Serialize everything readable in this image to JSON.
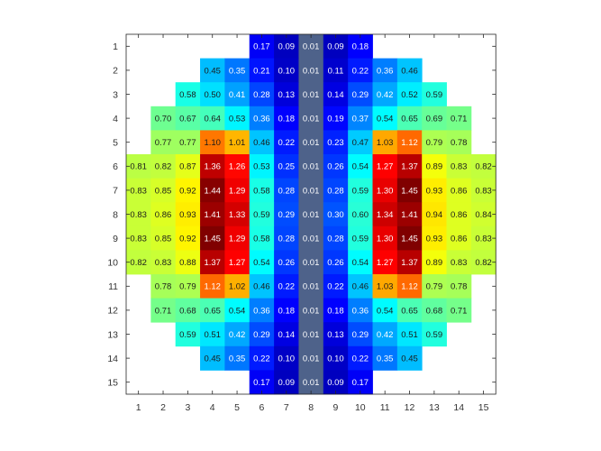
{
  "chart_data": {
    "type": "heatmap",
    "title": "",
    "xlabel": "",
    "ylabel": "",
    "x_ticks": [
      "1",
      "2",
      "3",
      "4",
      "5",
      "6",
      "7",
      "8",
      "9",
      "10",
      "11",
      "12",
      "13",
      "14",
      "15"
    ],
    "y_ticks": [
      "1",
      "2",
      "3",
      "4",
      "5",
      "6",
      "7",
      "8",
      "9",
      "10",
      "11",
      "12",
      "13",
      "14",
      "15"
    ],
    "colormap": "jet",
    "value_range": [
      0,
      1.45
    ],
    "rows": [
      [
        null,
        null,
        null,
        null,
        null,
        "0.17",
        "0.09",
        "0.01",
        "0.09",
        "0.18",
        null,
        null,
        null,
        null,
        null
      ],
      [
        null,
        null,
        null,
        "0.45",
        "0.35",
        "0.21",
        "0.10",
        "0.01",
        "0.11",
        "0.22",
        "0.36",
        "0.46",
        null,
        null,
        null
      ],
      [
        null,
        null,
        "0.58",
        "0.50",
        "0.41",
        "0.28",
        "0.13",
        "0.01",
        "0.14",
        "0.29",
        "0.42",
        "0.52",
        "0.59",
        null,
        null
      ],
      [
        null,
        "0.70",
        "0.67",
        "0.64",
        "0.53",
        "0.36",
        "0.18",
        "0.01",
        "0.19",
        "0.37",
        "0.54",
        "0.65",
        "0.69",
        "0.71",
        null
      ],
      [
        null,
        "0.77",
        "0.77",
        "1.10",
        "1.01",
        "0.46",
        "0.22",
        "0.01",
        "0.23",
        "0.47",
        "1.03",
        "1.12",
        "0.79",
        "0.78",
        null
      ],
      [
        "0.81",
        "0.82",
        "0.87",
        "1.36",
        "1.26",
        "0.53",
        "0.25",
        "0.01",
        "0.26",
        "0.54",
        "1.27",
        "1.37",
        "0.89",
        "0.83",
        "0.82"
      ],
      [
        "0.83",
        "0.85",
        "0.92",
        "1.44",
        "1.29",
        "0.58",
        "0.28",
        "0.01",
        "0.28",
        "0.59",
        "1.30",
        "1.45",
        "0.93",
        "0.86",
        "0.83"
      ],
      [
        "0.83",
        "0.86",
        "0.93",
        "1.41",
        "1.33",
        "0.59",
        "0.29",
        "0.01",
        "0.30",
        "0.60",
        "1.34",
        "1.41",
        "0.94",
        "0.86",
        "0.84"
      ],
      [
        "0.83",
        "0.85",
        "0.92",
        "1.45",
        "1.29",
        "0.58",
        "0.28",
        "0.01",
        "0.28",
        "0.59",
        "1.30",
        "1.45",
        "0.93",
        "0.86",
        "0.83"
      ],
      [
        "0.82",
        "0.83",
        "0.88",
        "1.37",
        "1.27",
        "0.54",
        "0.26",
        "0.01",
        "0.26",
        "0.54",
        "1.27",
        "1.37",
        "0.89",
        "0.83",
        "0.82"
      ],
      [
        null,
        "0.78",
        "0.79",
        "1.12",
        "1.02",
        "0.46",
        "0.22",
        "0.01",
        "0.22",
        "0.46",
        "1.03",
        "1.12",
        "0.79",
        "0.78",
        null
      ],
      [
        null,
        "0.71",
        "0.68",
        "0.65",
        "0.54",
        "0.36",
        "0.18",
        "0.01",
        "0.18",
        "0.36",
        "0.54",
        "0.65",
        "0.68",
        "0.71",
        null
      ],
      [
        null,
        null,
        "0.59",
        "0.51",
        "0.42",
        "0.29",
        "0.14",
        "0.01",
        "0.13",
        "0.29",
        "0.42",
        "0.51",
        "0.59",
        null,
        null
      ],
      [
        null,
        null,
        null,
        "0.45",
        "0.35",
        "0.22",
        "0.10",
        "0.01",
        "0.10",
        "0.22",
        "0.35",
        "0.45",
        null,
        null,
        null
      ],
      [
        null,
        null,
        null,
        null,
        null,
        "0.17",
        "0.09",
        "0.01",
        "0.09",
        "0.17",
        null,
        null,
        null,
        null,
        null
      ]
    ],
    "grid": false
  }
}
